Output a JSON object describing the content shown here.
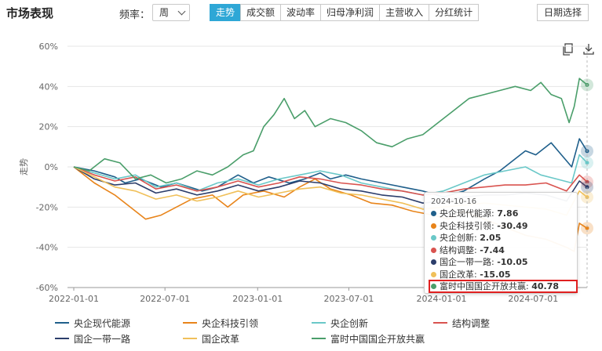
{
  "header": {
    "title": "市场表现",
    "freq_label": "频率：",
    "freq_value": "周",
    "tabs": [
      {
        "label": "走势",
        "active": true
      },
      {
        "label": "成交额",
        "active": false
      },
      {
        "label": "波动率",
        "active": false
      },
      {
        "label": "归母净利润",
        "active": false
      },
      {
        "label": "主营收入",
        "active": false
      },
      {
        "label": "分红统计",
        "active": false
      }
    ],
    "date_button": "日期选择"
  },
  "toolbar": {
    "icons": [
      "copy-icon",
      "download-icon"
    ]
  },
  "colors": {
    "accent": "#2ea7d6",
    "highlight_box": "#e02020"
  },
  "tooltip": {
    "date": "2024-10-16",
    "rows": [
      {
        "label": "央企现代能源: ",
        "value": "7.86",
        "color": "#1f5f8b"
      },
      {
        "label": "央企科技引领: ",
        "value": "-30.49",
        "color": "#e8841a"
      },
      {
        "label": "央企创新: ",
        "value": "2.05",
        "color": "#6ac8c8"
      },
      {
        "label": "结构调整: ",
        "value": "-7.44",
        "color": "#d9534f"
      },
      {
        "label": "国企一带一路: ",
        "value": "-10.05",
        "color": "#2c3e6b"
      },
      {
        "label": "国企改革: ",
        "value": "-15.05",
        "color": "#f0c05a"
      },
      {
        "label": "富时中国国企开放共赢: ",
        "value": "40.78",
        "color": "#4a9e6a",
        "highlight": true
      }
    ]
  },
  "chart_data": {
    "type": "line",
    "ylabel": "走势",
    "ylim": [
      -60,
      60
    ],
    "y_ticks": [
      "60%",
      "40%",
      "20%",
      "0%",
      "-20%",
      "-40%",
      "-60%"
    ],
    "y_tick_values": [
      60,
      40,
      20,
      0,
      -20,
      -40,
      -60
    ],
    "x_ticks": [
      "2022-01-01",
      "2022-07-01",
      "2023-01-01",
      "2023-07-01",
      "2024-01-01",
      "2024-07-01"
    ],
    "x_range": [
      "2022-01-01",
      "2024-10-16"
    ],
    "grid": true,
    "legend_position": "bottom",
    "series": [
      {
        "name": "央企现代能源",
        "color": "#1f5f8b",
        "last": 7.86,
        "values": [
          [
            0,
            0
          ],
          [
            0.04,
            -2
          ],
          [
            0.08,
            -5
          ],
          [
            0.1,
            -8
          ],
          [
            0.13,
            -6
          ],
          [
            0.17,
            -10
          ],
          [
            0.2,
            -8
          ],
          [
            0.25,
            -12
          ],
          [
            0.28,
            -10
          ],
          [
            0.32,
            -4
          ],
          [
            0.35,
            -8
          ],
          [
            0.38,
            -5
          ],
          [
            0.42,
            -8
          ],
          [
            0.45,
            -6
          ],
          [
            0.48,
            -3
          ],
          [
            0.5,
            -6
          ],
          [
            0.53,
            -4
          ],
          [
            0.56,
            -6
          ],
          [
            0.6,
            -8
          ],
          [
            0.64,
            -10
          ],
          [
            0.68,
            -12
          ],
          [
            0.72,
            -15
          ],
          [
            0.76,
            -12
          ],
          [
            0.8,
            -6
          ],
          [
            0.83,
            -2
          ],
          [
            0.86,
            4
          ],
          [
            0.88,
            8
          ],
          [
            0.9,
            6
          ],
          [
            0.93,
            12
          ],
          [
            0.95,
            6
          ],
          [
            0.97,
            0
          ],
          [
            0.985,
            14
          ],
          [
            1.0,
            7.86
          ]
        ]
      },
      {
        "name": "央企科技引领",
        "color": "#e8841a",
        "last": -30.49,
        "values": [
          [
            0,
            0
          ],
          [
            0.04,
            -8
          ],
          [
            0.08,
            -14
          ],
          [
            0.11,
            -20
          ],
          [
            0.14,
            -26
          ],
          [
            0.17,
            -24
          ],
          [
            0.2,
            -20
          ],
          [
            0.23,
            -16
          ],
          [
            0.27,
            -14
          ],
          [
            0.3,
            -20
          ],
          [
            0.33,
            -14
          ],
          [
            0.37,
            -12
          ],
          [
            0.41,
            -15
          ],
          [
            0.44,
            -10
          ],
          [
            0.47,
            -6
          ],
          [
            0.5,
            -11
          ],
          [
            0.54,
            -14
          ],
          [
            0.58,
            -18
          ],
          [
            0.62,
            -19
          ],
          [
            0.66,
            -22
          ],
          [
            0.7,
            -24
          ],
          [
            0.73,
            -26
          ],
          [
            0.76,
            -22
          ],
          [
            0.8,
            -26
          ],
          [
            0.84,
            -30
          ],
          [
            0.88,
            -34
          ],
          [
            0.92,
            -36
          ],
          [
            0.96,
            -40
          ],
          [
            0.975,
            -42
          ],
          [
            0.985,
            -28
          ],
          [
            1.0,
            -30.49
          ]
        ]
      },
      {
        "name": "央企创新",
        "color": "#6ac8c8",
        "last": 2.05,
        "values": [
          [
            0,
            0
          ],
          [
            0.04,
            -3
          ],
          [
            0.08,
            -6
          ],
          [
            0.12,
            -4
          ],
          [
            0.16,
            -10
          ],
          [
            0.2,
            -8
          ],
          [
            0.24,
            -12
          ],
          [
            0.28,
            -8
          ],
          [
            0.32,
            -6
          ],
          [
            0.36,
            -9
          ],
          [
            0.4,
            -6
          ],
          [
            0.44,
            -4
          ],
          [
            0.48,
            -2
          ],
          [
            0.52,
            -4
          ],
          [
            0.56,
            -8
          ],
          [
            0.6,
            -10
          ],
          [
            0.64,
            -12
          ],
          [
            0.68,
            -14
          ],
          [
            0.72,
            -12
          ],
          [
            0.76,
            -8
          ],
          [
            0.8,
            -4
          ],
          [
            0.84,
            -2
          ],
          [
            0.88,
            0
          ],
          [
            0.91,
            -4
          ],
          [
            0.94,
            -6
          ],
          [
            0.97,
            -8
          ],
          [
            0.985,
            6
          ],
          [
            1.0,
            2.05
          ]
        ]
      },
      {
        "name": "结构调整",
        "color": "#d9534f",
        "last": -7.44,
        "values": [
          [
            0,
            0
          ],
          [
            0.04,
            -4
          ],
          [
            0.08,
            -7
          ],
          [
            0.12,
            -5
          ],
          [
            0.16,
            -11
          ],
          [
            0.2,
            -9
          ],
          [
            0.24,
            -12
          ],
          [
            0.28,
            -10
          ],
          [
            0.32,
            -7
          ],
          [
            0.36,
            -10
          ],
          [
            0.4,
            -8
          ],
          [
            0.44,
            -5
          ],
          [
            0.48,
            -6
          ],
          [
            0.52,
            -8
          ],
          [
            0.56,
            -9
          ],
          [
            0.6,
            -11
          ],
          [
            0.64,
            -12
          ],
          [
            0.68,
            -14
          ],
          [
            0.72,
            -13
          ],
          [
            0.76,
            -11
          ],
          [
            0.8,
            -10
          ],
          [
            0.84,
            -9
          ],
          [
            0.88,
            -9
          ],
          [
            0.92,
            -8
          ],
          [
            0.96,
            -12
          ],
          [
            0.985,
            -4
          ],
          [
            1.0,
            -7.44
          ]
        ]
      },
      {
        "name": "国企一带一路",
        "color": "#2c3e6b",
        "last": -10.05,
        "values": [
          [
            0,
            0
          ],
          [
            0.04,
            -6
          ],
          [
            0.08,
            -9
          ],
          [
            0.12,
            -8
          ],
          [
            0.16,
            -13
          ],
          [
            0.2,
            -11
          ],
          [
            0.24,
            -14
          ],
          [
            0.28,
            -12
          ],
          [
            0.32,
            -9
          ],
          [
            0.36,
            -12
          ],
          [
            0.4,
            -10
          ],
          [
            0.44,
            -7
          ],
          [
            0.48,
            -8
          ],
          [
            0.52,
            -11
          ],
          [
            0.56,
            -12
          ],
          [
            0.6,
            -14
          ],
          [
            0.64,
            -15
          ],
          [
            0.68,
            -18
          ],
          [
            0.72,
            -17
          ],
          [
            0.76,
            -15
          ],
          [
            0.8,
            -14
          ],
          [
            0.84,
            -14
          ],
          [
            0.88,
            -13
          ],
          [
            0.92,
            -14
          ],
          [
            0.96,
            -17
          ],
          [
            0.985,
            -7
          ],
          [
            1.0,
            -10.05
          ]
        ]
      },
      {
        "name": "国企改革",
        "color": "#f0c05a",
        "last": -15.05,
        "values": [
          [
            0,
            0
          ],
          [
            0.04,
            -5
          ],
          [
            0.08,
            -10
          ],
          [
            0.12,
            -12
          ],
          [
            0.16,
            -16
          ],
          [
            0.2,
            -14
          ],
          [
            0.24,
            -17
          ],
          [
            0.28,
            -15
          ],
          [
            0.32,
            -12
          ],
          [
            0.36,
            -15
          ],
          [
            0.4,
            -13
          ],
          [
            0.44,
            -11
          ],
          [
            0.48,
            -10
          ],
          [
            0.52,
            -13
          ],
          [
            0.56,
            -14
          ],
          [
            0.6,
            -16
          ],
          [
            0.64,
            -18
          ],
          [
            0.68,
            -21
          ],
          [
            0.72,
            -20
          ],
          [
            0.76,
            -19
          ],
          [
            0.8,
            -18
          ],
          [
            0.84,
            -19
          ],
          [
            0.88,
            -20
          ],
          [
            0.92,
            -21
          ],
          [
            0.96,
            -24
          ],
          [
            0.985,
            -12
          ],
          [
            1.0,
            -15.05
          ]
        ]
      },
      {
        "name": "富时中国国企开放共赢",
        "color": "#4a9e6a",
        "last": 40.78,
        "values": [
          [
            0,
            0
          ],
          [
            0.03,
            -2
          ],
          [
            0.06,
            4
          ],
          [
            0.09,
            2
          ],
          [
            0.12,
            -6
          ],
          [
            0.15,
            -4
          ],
          [
            0.18,
            -8
          ],
          [
            0.21,
            -6
          ],
          [
            0.24,
            -2
          ],
          [
            0.27,
            -4
          ],
          [
            0.3,
            0
          ],
          [
            0.33,
            6
          ],
          [
            0.35,
            8
          ],
          [
            0.37,
            20
          ],
          [
            0.39,
            26
          ],
          [
            0.41,
            34
          ],
          [
            0.43,
            24
          ],
          [
            0.45,
            28
          ],
          [
            0.47,
            20
          ],
          [
            0.5,
            24
          ],
          [
            0.53,
            22
          ],
          [
            0.56,
            18
          ],
          [
            0.59,
            12
          ],
          [
            0.62,
            10
          ],
          [
            0.65,
            14
          ],
          [
            0.68,
            16
          ],
          [
            0.71,
            22
          ],
          [
            0.74,
            28
          ],
          [
            0.77,
            34
          ],
          [
            0.8,
            36
          ],
          [
            0.83,
            38
          ],
          [
            0.86,
            40
          ],
          [
            0.89,
            38
          ],
          [
            0.91,
            42
          ],
          [
            0.93,
            36
          ],
          [
            0.95,
            34
          ],
          [
            0.965,
            22
          ],
          [
            0.975,
            30
          ],
          [
            0.985,
            44
          ],
          [
            1.0,
            40.78
          ]
        ]
      }
    ]
  }
}
